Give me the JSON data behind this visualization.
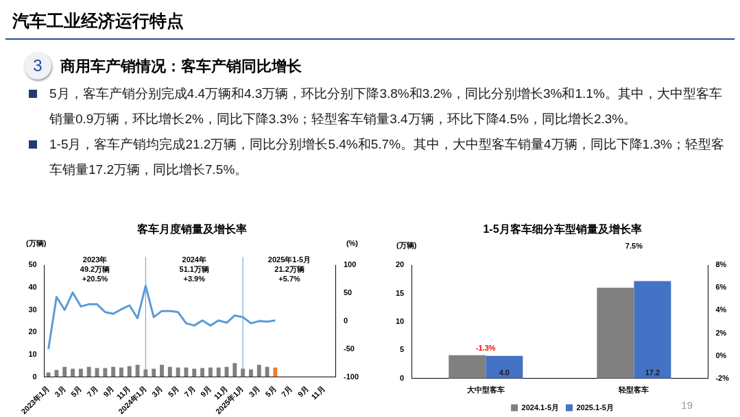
{
  "chart_data": [
    {
      "type": "other",
      "title": "汽车工业经济运行特点",
      "annotations": [
        "3",
        "商用车产销情况：客车产销同比增长",
        "5月，客车产销分别完成4.4万辆和4.3万辆，环比分别下降3.8%和3.2%，同比分别增长3%和1.1%。其中，大中型客车销量0.9万辆，环比增长2%，同比下降3.3%；轻型客车销量3.4万辆，环比下降4.5%，同比增长2.3%。",
        "1-5月，客车产销均完成21.2万辆，同比分别增长5.4%和5.7%。其中，大中型客车销量4万辆，同比下降1.3%；轻型客车销量17.2万辆，同比增长7.5%。"
      ]
    },
    {
      "type": "bar",
      "title": "客车月度销量及增长率",
      "ylabel": "(万辆)",
      "y2label": "(%)",
      "categories": [
        "2023年1月",
        null,
        "3月",
        null,
        "5月",
        null,
        "7月",
        null,
        "9月",
        null,
        "11月",
        null,
        "2024年1月",
        null,
        "3月",
        null,
        "5月",
        null,
        "7月",
        null,
        "9月",
        null,
        "11月",
        null,
        "2025年1月",
        null,
        "3月",
        null,
        "5月",
        null,
        "7月",
        null,
        "9月",
        null,
        "11月",
        null
      ],
      "series": [
        {
          "type": "bar",
          "colors": [
            "#808080",
            "#808080",
            "#808080",
            "#808080",
            "#808080",
            "#808080",
            "#808080",
            "#808080",
            "#808080",
            "#808080",
            "#808080",
            "#808080",
            "#808080",
            "#808080",
            "#808080",
            "#808080",
            "#808080",
            "#808080",
            "#808080",
            "#808080",
            "#808080",
            "#808080",
            "#808080",
            "#808080",
            "#808080",
            "#808080",
            "#808080",
            "#808080",
            "#ed7d31",
            null,
            null,
            null,
            null,
            null,
            null,
            null
          ],
          "values": [
            2.0,
            3.1,
            4.5,
            3.7,
            3.7,
            4.5,
            4.0,
            4.0,
            4.5,
            4.2,
            4.8,
            5.4,
            3.4,
            3.7,
            5.4,
            4.5,
            4.2,
            4.2,
            3.7,
            4.0,
            4.2,
            4.2,
            4.5,
            6.2,
            3.7,
            3.4,
            5.4,
            4.5,
            4.2,
            null,
            null,
            null,
            null,
            null,
            null,
            null
          ]
        },
        {
          "type": "line",
          "axis": "y2",
          "color": "#5b9bd5",
          "values": [
            -50,
            43,
            20,
            51,
            26,
            30,
            30,
            16,
            13,
            21,
            28,
            5,
            63,
            7,
            18,
            18,
            16,
            -4,
            -8,
            1,
            -8,
            1,
            -3,
            10,
            7,
            -4,
            0,
            -1,
            1,
            null,
            null,
            null,
            null,
            null,
            null,
            null
          ]
        }
      ],
      "ylim": [
        0,
        50
      ],
      "yticks": [
        0,
        10,
        20,
        30,
        40,
        50
      ],
      "y2lim": [
        -100,
        100
      ],
      "y2ticks": [
        -100,
        -50,
        0,
        50,
        100
      ],
      "ref_lines": [
        {
          "axis": "x",
          "value": "2024年1月",
          "color": "#5b9bd5"
        },
        {
          "axis": "x",
          "value": "2025年1月",
          "color": "#5b9bd5"
        }
      ],
      "annotations": [
        "2023年\n49.2万辆\n+20.5%",
        "2024年\n51.1万辆\n+3.9%",
        "2025年1-5月\n21.2万辆\n+5.7%"
      ],
      "legend": false
    },
    {
      "type": "bar",
      "title": "1-5月客车细分车型销量及增长率",
      "ylabel": "(万辆)",
      "categories": [
        "大中型客车",
        "轻型客车"
      ],
      "series": [
        {
          "name": "2024.1-5月",
          "color": "#808080",
          "values": [
            4.1,
            16.0
          ]
        },
        {
          "name": "2025.1-5月",
          "color": "#4472c4",
          "values": [
            4.0,
            17.2
          ],
          "value_labels": [
            "4.0",
            "17.2"
          ]
        }
      ],
      "ylim": [
        0,
        20
      ],
      "yticks": [
        0,
        5,
        10,
        15,
        20
      ],
      "y2lim": [
        -2,
        8
      ],
      "y2ticks": [
        {
          "value": -2,
          "label": "-2%"
        },
        {
          "value": 0,
          "label": "0%"
        },
        {
          "value": 2,
          "label": "2%"
        },
        {
          "value": 4,
          "label": "4%"
        },
        {
          "value": 6,
          "label": "6%"
        },
        {
          "value": 8,
          "label": "8%"
        }
      ],
      "annotations": [
        "-1.3%",
        "7.5%",
        "19"
      ],
      "legend": "bottom"
    }
  ]
}
